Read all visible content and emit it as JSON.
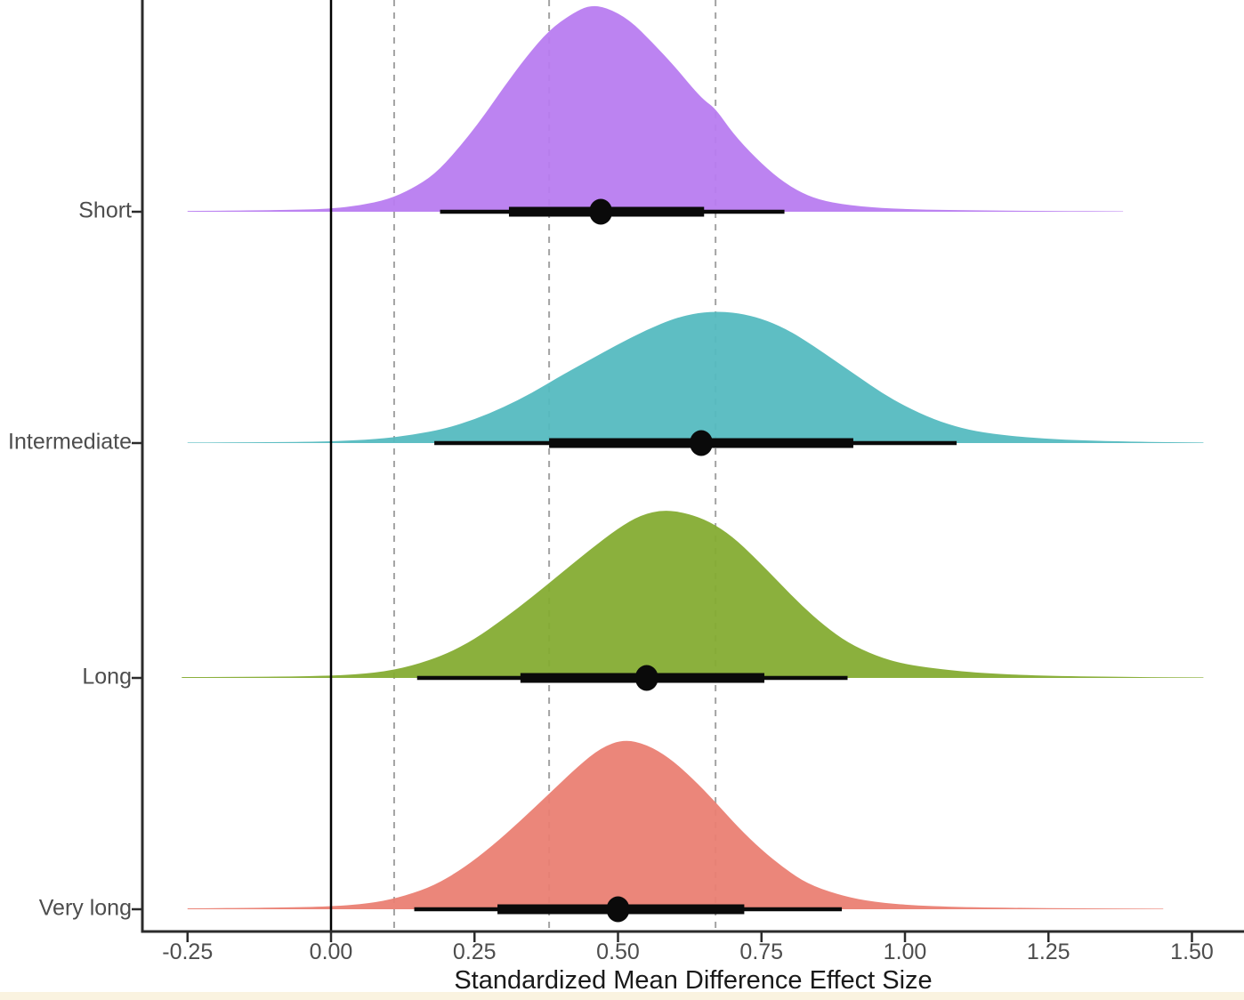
{
  "chart_data": {
    "type": "area",
    "variant": "ridgeline-density-with-intervals",
    "title": "",
    "xlabel": "Standardized Mean Difference Effect Size",
    "ylabel": "",
    "xlim": [
      -0.33,
      1.59
    ],
    "grid": "off",
    "x_ticks": [
      {
        "value": -0.25,
        "label": "-0.25"
      },
      {
        "value": 0.0,
        "label": "0.00"
      },
      {
        "value": 0.25,
        "label": "0.25"
      },
      {
        "value": 0.5,
        "label": "0.50"
      },
      {
        "value": 0.75,
        "label": "0.75"
      },
      {
        "value": 1.0,
        "label": "1.00"
      },
      {
        "value": 1.25,
        "label": "1.25"
      },
      {
        "value": 1.5,
        "label": "1.50"
      }
    ],
    "categories": [
      "Short",
      "Intermediate",
      "Long",
      "Very long"
    ],
    "reference_lines": {
      "solid": [
        0.0
      ],
      "dashed": [
        0.11,
        0.38,
        0.67
      ],
      "solid_color": "#000000",
      "dashed_color": "#a3a3a3"
    },
    "interval_color": "#0a0a0a",
    "series": [
      {
        "name": "Short",
        "color": "#b87cf0",
        "median": 0.47,
        "interval_66": [
          0.31,
          0.65
        ],
        "interval_95": [
          0.19,
          0.79
        ],
        "density": [
          [
            -0.25,
            0.004
          ],
          [
            -0.15,
            0.006
          ],
          [
            -0.05,
            0.01
          ],
          [
            0.0,
            0.015
          ],
          [
            0.05,
            0.03
          ],
          [
            0.1,
            0.06
          ],
          [
            0.14,
            0.11
          ],
          [
            0.18,
            0.18
          ],
          [
            0.22,
            0.3
          ],
          [
            0.26,
            0.44
          ],
          [
            0.3,
            0.6
          ],
          [
            0.34,
            0.75
          ],
          [
            0.38,
            0.88
          ],
          [
            0.42,
            0.96
          ],
          [
            0.45,
            1.0
          ],
          [
            0.48,
            0.99
          ],
          [
            0.52,
            0.93
          ],
          [
            0.56,
            0.82
          ],
          [
            0.6,
            0.7
          ],
          [
            0.63,
            0.6
          ],
          [
            0.65,
            0.54
          ],
          [
            0.67,
            0.5
          ],
          [
            0.7,
            0.38
          ],
          [
            0.74,
            0.26
          ],
          [
            0.78,
            0.16
          ],
          [
            0.82,
            0.09
          ],
          [
            0.86,
            0.05
          ],
          [
            0.92,
            0.025
          ],
          [
            1.0,
            0.012
          ],
          [
            1.1,
            0.007
          ],
          [
            1.25,
            0.004
          ],
          [
            1.38,
            0.002
          ]
        ]
      },
      {
        "name": "Intermediate",
        "color": "#55bbc0",
        "median": 0.645,
        "interval_66": [
          0.38,
          0.91
        ],
        "interval_95": [
          0.18,
          1.09
        ],
        "density": [
          [
            -0.25,
            0.004
          ],
          [
            -0.1,
            0.007
          ],
          [
            0.0,
            0.012
          ],
          [
            0.08,
            0.03
          ],
          [
            0.14,
            0.06
          ],
          [
            0.2,
            0.11
          ],
          [
            0.25,
            0.18
          ],
          [
            0.3,
            0.27
          ],
          [
            0.35,
            0.38
          ],
          [
            0.4,
            0.51
          ],
          [
            0.45,
            0.63
          ],
          [
            0.5,
            0.75
          ],
          [
            0.55,
            0.86
          ],
          [
            0.6,
            0.95
          ],
          [
            0.64,
            0.99
          ],
          [
            0.68,
            1.0
          ],
          [
            0.72,
            0.98
          ],
          [
            0.76,
            0.93
          ],
          [
            0.8,
            0.85
          ],
          [
            0.84,
            0.74
          ],
          [
            0.88,
            0.62
          ],
          [
            0.92,
            0.5
          ],
          [
            0.96,
            0.38
          ],
          [
            1.0,
            0.28
          ],
          [
            1.05,
            0.18
          ],
          [
            1.1,
            0.11
          ],
          [
            1.15,
            0.07
          ],
          [
            1.22,
            0.04
          ],
          [
            1.3,
            0.02
          ],
          [
            1.4,
            0.01
          ],
          [
            1.52,
            0.004
          ]
        ]
      },
      {
        "name": "Long",
        "color": "#85ac33",
        "median": 0.55,
        "interval_66": [
          0.33,
          0.755
        ],
        "interval_95": [
          0.15,
          0.9
        ],
        "density": [
          [
            -0.26,
            0.005
          ],
          [
            -0.12,
            0.007
          ],
          [
            0.0,
            0.012
          ],
          [
            0.08,
            0.03
          ],
          [
            0.14,
            0.07
          ],
          [
            0.2,
            0.14
          ],
          [
            0.25,
            0.23
          ],
          [
            0.3,
            0.35
          ],
          [
            0.35,
            0.48
          ],
          [
            0.4,
            0.62
          ],
          [
            0.45,
            0.76
          ],
          [
            0.5,
            0.89
          ],
          [
            0.54,
            0.97
          ],
          [
            0.58,
            1.0
          ],
          [
            0.62,
            0.98
          ],
          [
            0.66,
            0.93
          ],
          [
            0.7,
            0.84
          ],
          [
            0.74,
            0.71
          ],
          [
            0.78,
            0.57
          ],
          [
            0.82,
            0.43
          ],
          [
            0.86,
            0.31
          ],
          [
            0.9,
            0.21
          ],
          [
            0.95,
            0.13
          ],
          [
            1.0,
            0.08
          ],
          [
            1.08,
            0.045
          ],
          [
            1.15,
            0.025
          ],
          [
            1.25,
            0.012
          ],
          [
            1.4,
            0.005
          ],
          [
            1.52,
            0.003
          ]
        ]
      },
      {
        "name": "Very long",
        "color": "#ea8073",
        "median": 0.5,
        "interval_66": [
          0.29,
          0.72
        ],
        "interval_95": [
          0.145,
          0.89
        ],
        "density": [
          [
            -0.25,
            0.005
          ],
          [
            -0.15,
            0.008
          ],
          [
            -0.05,
            0.012
          ],
          [
            0.02,
            0.02
          ],
          [
            0.08,
            0.04
          ],
          [
            0.13,
            0.08
          ],
          [
            0.18,
            0.14
          ],
          [
            0.23,
            0.24
          ],
          [
            0.28,
            0.37
          ],
          [
            0.33,
            0.52
          ],
          [
            0.38,
            0.68
          ],
          [
            0.43,
            0.84
          ],
          [
            0.47,
            0.95
          ],
          [
            0.51,
            1.0
          ],
          [
            0.55,
            0.97
          ],
          [
            0.59,
            0.89
          ],
          [
            0.63,
            0.77
          ],
          [
            0.67,
            0.63
          ],
          [
            0.71,
            0.48
          ],
          [
            0.75,
            0.35
          ],
          [
            0.79,
            0.24
          ],
          [
            0.83,
            0.15
          ],
          [
            0.88,
            0.09
          ],
          [
            0.93,
            0.05
          ],
          [
            1.0,
            0.025
          ],
          [
            1.1,
            0.012
          ],
          [
            1.25,
            0.006
          ],
          [
            1.45,
            0.003
          ]
        ]
      }
    ]
  },
  "colors": {
    "axis_line": "#2b2b2b",
    "tick_text": "#4d4d4d",
    "title_text": "#1a1a1a",
    "bottom_strip": "#faf3e0"
  }
}
